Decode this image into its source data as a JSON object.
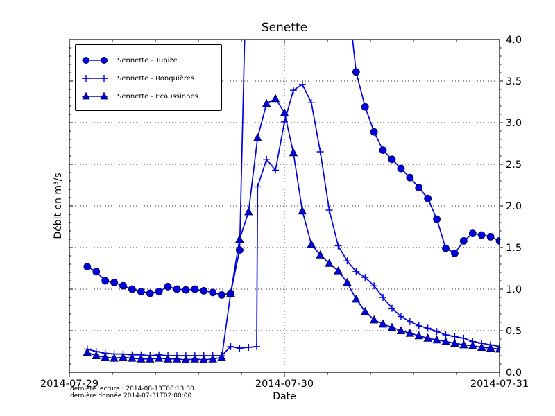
{
  "chart_data": {
    "type": "line",
    "title": "Senette",
    "xlabel": "Date",
    "ylabel": "Débit en m³/s",
    "x_unit": "hours_since_2014-07-29T00:00",
    "xlim": [
      0,
      48
    ],
    "ylim": [
      0.0,
      4.0
    ],
    "x_ticks_hours": [
      0,
      24,
      48
    ],
    "x_tick_labels": [
      "2014-07-29",
      "2014-07-30",
      "2014-07-31"
    ],
    "y_tick_step": 0.5,
    "y_tick_labels": [
      "0.0",
      "0.5",
      "1.0",
      "1.5",
      "2.0",
      "2.5",
      "3.0",
      "3.5",
      "4.0"
    ],
    "grid": {
      "horizontal_every": 0.5,
      "vertical_at_hours": [
        24
      ],
      "style": "dotted"
    },
    "line_color": "#0000dd",
    "marker_edge_color": "#000044",
    "series": [
      {
        "name": "Sennette - Tubize",
        "marker": "circle",
        "offscale_segment_estimated": true,
        "points": [
          [
            2,
            1.27
          ],
          [
            3,
            1.21
          ],
          [
            4,
            1.1
          ],
          [
            5,
            1.08
          ],
          [
            6,
            1.04
          ],
          [
            7,
            1.0
          ],
          [
            8,
            0.97
          ],
          [
            9,
            0.95
          ],
          [
            10,
            0.97
          ],
          [
            11,
            1.03
          ],
          [
            12,
            1.0
          ],
          [
            13,
            0.99
          ],
          [
            14,
            1.0
          ],
          [
            15,
            0.98
          ],
          [
            16,
            0.96
          ],
          [
            17,
            0.93
          ],
          [
            18,
            0.95
          ],
          [
            19,
            1.47
          ],
          [
            20,
            6.0
          ],
          [
            31,
            4.6
          ],
          [
            32,
            3.61
          ],
          [
            33,
            3.19
          ],
          [
            34,
            2.89
          ],
          [
            35,
            2.67
          ],
          [
            36,
            2.56
          ],
          [
            37,
            2.45
          ],
          [
            38,
            2.34
          ],
          [
            39,
            2.22
          ],
          [
            40,
            2.09
          ],
          [
            41,
            1.84
          ],
          [
            42,
            1.49
          ],
          [
            43,
            1.43
          ],
          [
            44,
            1.58
          ],
          [
            45,
            1.67
          ],
          [
            46,
            1.65
          ],
          [
            47,
            1.63
          ],
          [
            48,
            1.58
          ]
        ]
      },
      {
        "name": "Sennette - Ronquières",
        "marker": "plus",
        "points": [
          [
            2,
            0.28
          ],
          [
            3,
            0.25
          ],
          [
            4,
            0.23
          ],
          [
            5,
            0.22
          ],
          [
            6,
            0.22
          ],
          [
            7,
            0.21
          ],
          [
            8,
            0.21
          ],
          [
            9,
            0.2
          ],
          [
            10,
            0.21
          ],
          [
            11,
            0.2
          ],
          [
            12,
            0.2
          ],
          [
            13,
            0.2
          ],
          [
            14,
            0.2
          ],
          [
            15,
            0.2
          ],
          [
            16,
            0.2
          ],
          [
            17,
            0.2
          ],
          [
            18,
            0.31
          ],
          [
            19,
            0.29
          ],
          [
            20,
            0.3
          ],
          [
            20.9,
            0.31
          ],
          [
            21,
            2.23
          ],
          [
            22,
            2.56
          ],
          [
            23,
            2.43
          ],
          [
            24,
            3.01
          ],
          [
            25,
            3.39
          ],
          [
            26,
            3.46
          ],
          [
            27,
            3.24
          ],
          [
            28,
            2.65
          ],
          [
            29,
            1.95
          ],
          [
            30,
            1.52
          ],
          [
            31,
            1.34
          ],
          [
            32,
            1.21
          ],
          [
            33,
            1.14
          ],
          [
            34,
            1.04
          ],
          [
            35,
            0.9
          ],
          [
            36,
            0.77
          ],
          [
            37,
            0.67
          ],
          [
            38,
            0.61
          ],
          [
            39,
            0.56
          ],
          [
            40,
            0.53
          ],
          [
            41,
            0.49
          ],
          [
            42,
            0.45
          ],
          [
            43,
            0.43
          ],
          [
            44,
            0.41
          ],
          [
            45,
            0.37
          ],
          [
            46,
            0.35
          ],
          [
            47,
            0.33
          ],
          [
            48,
            0.31
          ]
        ]
      },
      {
        "name": "Sennette - Ecaussinnes",
        "marker": "triangle",
        "points": [
          [
            2,
            0.24
          ],
          [
            3,
            0.2
          ],
          [
            4,
            0.18
          ],
          [
            5,
            0.17
          ],
          [
            6,
            0.18
          ],
          [
            7,
            0.17
          ],
          [
            8,
            0.16
          ],
          [
            9,
            0.16
          ],
          [
            10,
            0.17
          ],
          [
            11,
            0.16
          ],
          [
            12,
            0.16
          ],
          [
            13,
            0.15
          ],
          [
            14,
            0.16
          ],
          [
            15,
            0.15
          ],
          [
            16,
            0.16
          ],
          [
            17,
            0.18
          ],
          [
            18,
            0.95
          ],
          [
            19,
            1.6
          ],
          [
            20,
            1.93
          ],
          [
            21,
            2.82
          ],
          [
            22,
            3.23
          ],
          [
            23,
            3.29
          ],
          [
            24,
            3.12
          ],
          [
            25,
            2.64
          ],
          [
            26,
            1.94
          ],
          [
            27,
            1.54
          ],
          [
            28,
            1.41
          ],
          [
            29,
            1.31
          ],
          [
            30,
            1.22
          ],
          [
            31,
            1.08
          ],
          [
            32,
            0.88
          ],
          [
            33,
            0.73
          ],
          [
            34,
            0.63
          ],
          [
            35,
            0.58
          ],
          [
            36,
            0.54
          ],
          [
            37,
            0.5
          ],
          [
            38,
            0.47
          ],
          [
            39,
            0.44
          ],
          [
            40,
            0.41
          ],
          [
            41,
            0.39
          ],
          [
            42,
            0.37
          ],
          [
            43,
            0.35
          ],
          [
            44,
            0.33
          ],
          [
            45,
            0.32
          ],
          [
            46,
            0.3
          ],
          [
            47,
            0.29
          ],
          [
            48,
            0.28
          ]
        ]
      }
    ]
  },
  "footer": {
    "line1": "dernière lecture : 2014-08-13T08:13:30",
    "line2": "dernière donnée  2014-07-31T02:00:00"
  }
}
